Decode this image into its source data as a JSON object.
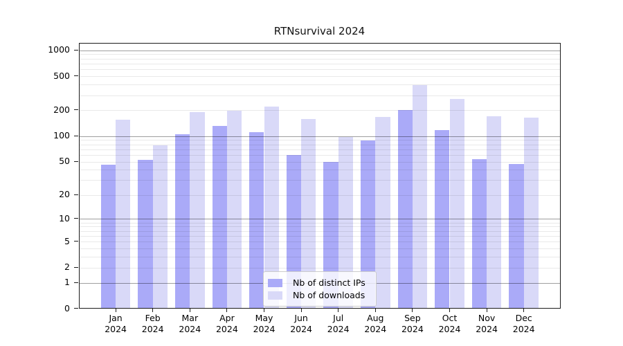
{
  "chart_data": {
    "type": "bar",
    "title": "RTNsurvival 2024",
    "months": [
      "Jan",
      "Feb",
      "Mar",
      "Apr",
      "May",
      "Jun",
      "Jul",
      "Aug",
      "Sep",
      "Oct",
      "Nov",
      "Dec"
    ],
    "year_label": "2024",
    "categories": [
      "Jan 2024",
      "Feb 2024",
      "Mar 2024",
      "Apr 2024",
      "May 2024",
      "Jun 2024",
      "Jul 2024",
      "Aug 2024",
      "Sep 2024",
      "Oct 2024",
      "Nov 2024",
      "Dec 2024"
    ],
    "series": [
      {
        "name": "Nb of distinct IPs",
        "color": "#aaaaf8",
        "values": [
          45,
          51,
          103,
          128,
          108,
          58,
          48,
          87,
          197,
          115,
          52,
          46
        ]
      },
      {
        "name": "Nb of downloads",
        "color": "#d9d9f8",
        "values": [
          150,
          76,
          185,
          194,
          215,
          155,
          94,
          164,
          385,
          262,
          167,
          161
        ]
      }
    ],
    "y_axis": {
      "scale": "log10(value+1)",
      "tick_values": [
        0,
        1,
        2,
        5,
        10,
        20,
        50,
        100,
        200,
        500,
        1000
      ],
      "major_gridlines": [
        1,
        10,
        100,
        1000
      ],
      "minor_gridlines": [
        2,
        3,
        4,
        5,
        6,
        7,
        8,
        9,
        20,
        30,
        40,
        50,
        60,
        70,
        80,
        90,
        200,
        300,
        400,
        500,
        600,
        700,
        800,
        900
      ],
      "ylim": [
        0,
        1220
      ]
    },
    "grid": true,
    "legend_position": "lower-center"
  },
  "colors": {
    "distinct_ips": "#aaaaf8",
    "downloads": "#d9d9f8",
    "spine": "#1a1a1a",
    "background": "#ffffff"
  }
}
